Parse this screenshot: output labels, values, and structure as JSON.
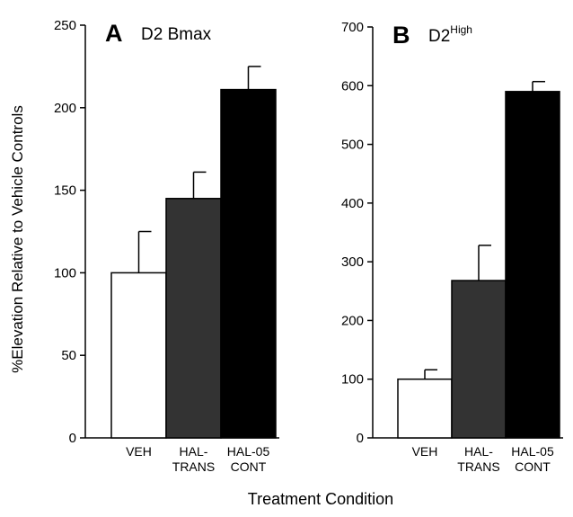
{
  "figure": {
    "ylabel": "%Elevation Relative to Vehicle Controls",
    "xlabel": "Treatment Condition"
  },
  "chart_data": [
    {
      "type": "bar",
      "panel_label": "A",
      "title": "D2 Bmax",
      "title_superscript": "",
      "categories": [
        [
          "VEH"
        ],
        [
          "HAL-",
          "TRANS"
        ],
        [
          "HAL-05",
          "CONT"
        ]
      ],
      "values": [
        100,
        145,
        211
      ],
      "errors": [
        25,
        16,
        14
      ],
      "bar_colors": [
        "#ffffff",
        "#333333",
        "#000000"
      ],
      "ylim": [
        0,
        250
      ],
      "yticks": [
        0,
        50,
        100,
        150,
        200,
        250
      ],
      "grid": false
    },
    {
      "type": "bar",
      "panel_label": "B",
      "title": "D2",
      "title_superscript": "High",
      "categories": [
        [
          "VEH"
        ],
        [
          "HAL-",
          "TRANS"
        ],
        [
          "HAL-05",
          "CONT"
        ]
      ],
      "values": [
        100,
        268,
        590
      ],
      "errors": [
        16,
        60,
        17
      ],
      "bar_colors": [
        "#ffffff",
        "#333333",
        "#000000"
      ],
      "ylim": [
        0,
        700
      ],
      "yticks": [
        0,
        100,
        200,
        300,
        400,
        500,
        600,
        700
      ],
      "grid": false
    }
  ]
}
